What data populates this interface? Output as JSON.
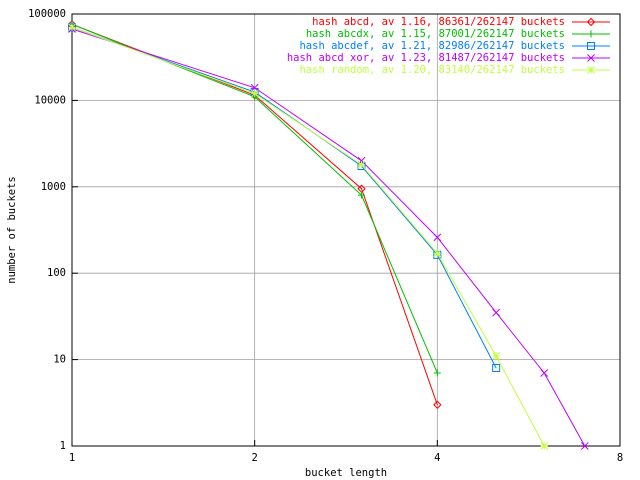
{
  "chart_data": {
    "type": "line",
    "xlabel": "bucket length",
    "ylabel": "number of buckets",
    "xscale": "log",
    "yscale": "log",
    "grid": true,
    "legend": "top-right",
    "xlim": [
      1,
      8
    ],
    "xticks": [
      1,
      2,
      4,
      8
    ],
    "ylim": [
      1,
      100000
    ],
    "yticks": [
      1,
      10,
      100,
      1000,
      10000,
      100000
    ],
    "series": [
      {
        "name": "hash abcd, av 1.16, 86361/262147 buckets",
        "color": "#ff0000",
        "marker": "diamond",
        "x": [
          1,
          2,
          3,
          4
        ],
        "values": [
          76000,
          11500,
          950,
          3
        ]
      },
      {
        "name": "hash abcdx, av 1.15, 87001/262147 buckets",
        "color": "#00c000",
        "marker": "plus",
        "x": [
          1,
          2,
          3,
          4
        ],
        "values": [
          76000,
          11000,
          800,
          7
        ]
      },
      {
        "name": "hash abcdef, av 1.21, 82986/262147 buckets",
        "color": "#0080ff",
        "marker": "square",
        "x": [
          1,
          2,
          3,
          4,
          5
        ],
        "values": [
          70000,
          12500,
          1740,
          163,
          8
        ]
      },
      {
        "name": "hash abcd xor, av 1.23, 81487/262147 buckets",
        "color": "#c000ff",
        "marker": "cross",
        "x": [
          1,
          2,
          3,
          4,
          5,
          6,
          7
        ],
        "values": [
          67000,
          14000,
          2000,
          260,
          35,
          7,
          1
        ]
      },
      {
        "name": "hash random, av 1.20, 83140/262147 buckets",
        "color": "#c0ff40",
        "marker": "star",
        "x": [
          1,
          2,
          3,
          4,
          5,
          6
        ],
        "values": [
          70000,
          12000,
          1800,
          170,
          11,
          1
        ]
      }
    ]
  }
}
